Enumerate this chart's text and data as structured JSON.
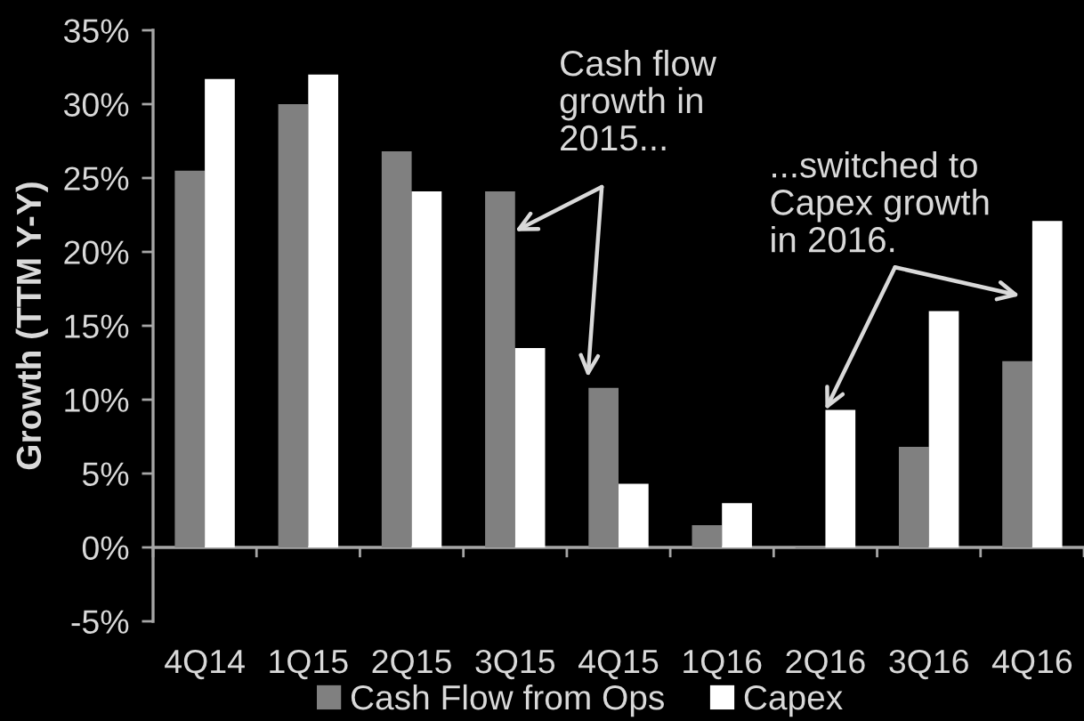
{
  "chart_data": {
    "type": "bar",
    "ylabel": "Growth (TTM Y-Y)",
    "categories": [
      "4Q14",
      "1Q15",
      "2Q15",
      "3Q15",
      "4Q15",
      "1Q16",
      "2Q16",
      "3Q16",
      "4Q16"
    ],
    "series": [
      {
        "name": "Cash Flow from Ops",
        "color": "#808080",
        "values": [
          25.5,
          30.0,
          26.8,
          24.1,
          10.8,
          1.5,
          -0.1,
          6.8,
          12.6
        ]
      },
      {
        "name": "Capex",
        "color": "#ffffff",
        "values": [
          31.7,
          32.0,
          24.1,
          13.5,
          4.3,
          3.0,
          9.3,
          16.0,
          22.1
        ]
      }
    ],
    "ylim": [
      -5,
      35
    ],
    "yticks": [
      {
        "value": -5,
        "label": "-5%"
      },
      {
        "value": 0,
        "label": "0%"
      },
      {
        "value": 5,
        "label": "5%"
      },
      {
        "value": 10,
        "label": "10%"
      },
      {
        "value": 15,
        "label": "15%"
      },
      {
        "value": 20,
        "label": "20%"
      },
      {
        "value": 25,
        "label": "25%"
      },
      {
        "value": 30,
        "label": "30%"
      },
      {
        "value": 35,
        "label": "35%"
      }
    ],
    "legend": "bottom",
    "annotations": [
      {
        "text": "Cash flow\ngrowth in\n2015...",
        "x": "3Q15",
        "y": 21.4
      },
      {
        "text": "...switched to\nCapex growth\nin 2016.",
        "x": "2Q16",
        "y": 9.3
      }
    ]
  }
}
